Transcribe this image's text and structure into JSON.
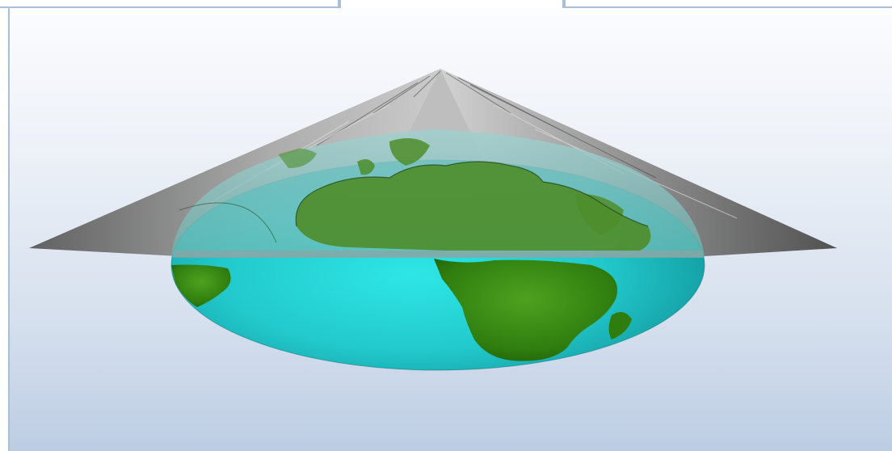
{
  "viewer": {
    "scene": "globe-with-cone-surface",
    "colors": {
      "panel_border": "#a9bfd8",
      "background_top": "#fbfcfe",
      "background_bottom": "#bccde3",
      "ocean": "#2fd6d6",
      "land": "#3f8f1a",
      "cone": "#7a7a7a"
    }
  }
}
